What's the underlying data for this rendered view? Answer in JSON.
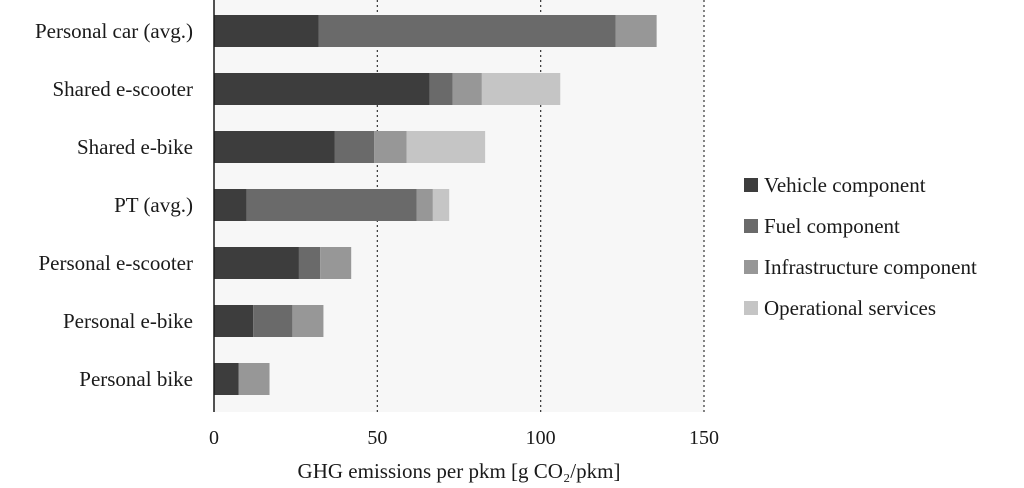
{
  "chart_data": {
    "type": "bar",
    "orientation": "horizontal",
    "stacked": true,
    "title": "",
    "xlabel": "GHG emissions per pkm [g CO₂/pkm]",
    "ylabel": "",
    "xlim": [
      0,
      150
    ],
    "xticks": [
      0,
      50,
      100,
      150
    ],
    "grid": "vertical dotted",
    "legend_position": "right",
    "categories": [
      "Personal car (avg.)",
      "Shared e-scooter",
      "Shared e-bike",
      "PT (avg.)",
      "Personal e-scooter",
      "Personal e-bike",
      "Personal bike"
    ],
    "series": [
      {
        "name": "Vehicle component",
        "color": "#3d3d3d",
        "values": [
          32,
          66,
          37,
          10,
          26,
          12,
          7.5
        ]
      },
      {
        "name": "Fuel component",
        "color": "#6a6a6a",
        "values": [
          91,
          7,
          12,
          52,
          6.5,
          12,
          0
        ]
      },
      {
        "name": "Infrastructure component",
        "color": "#979797",
        "values": [
          12.5,
          9,
          10,
          5,
          9.5,
          9.5,
          9.5
        ]
      },
      {
        "name": "Operational services",
        "color": "#c5c5c5",
        "values": [
          0,
          24,
          24,
          5,
          0,
          0,
          0
        ]
      }
    ]
  }
}
